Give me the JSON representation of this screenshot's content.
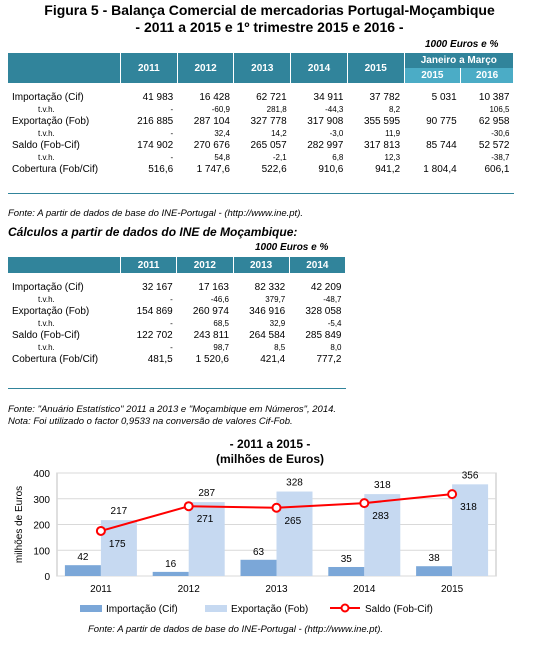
{
  "title_line1": "Figura 5 - Balança Comercial de mercadorias Portugal-Moçambique",
  "title_line2": "- 2011 a 2015 e 1º trimestre 2015 e 2016 -",
  "table1": {
    "units": "1000 Euros e %",
    "years": [
      "2011",
      "2012",
      "2013",
      "2014",
      "2015"
    ],
    "period_header": "Janeiro a Março",
    "period_years": [
      "2015",
      "2016"
    ],
    "rows": [
      {
        "label": "Importação (Cif)",
        "values": [
          "41 983",
          "16 428",
          "62 721",
          "34 911",
          "37 782",
          "5 031",
          "10 387"
        ],
        "sub": false
      },
      {
        "label": "t.v.h.",
        "values": [
          "-",
          "-60,9",
          "281,8",
          "-44,3",
          "8,2",
          "",
          "106,5"
        ],
        "sub": true
      },
      {
        "label": "Exportação (Fob)",
        "values": [
          "216 885",
          "287 104",
          "327 778",
          "317 908",
          "355 595",
          "90 775",
          "62 958"
        ],
        "sub": false
      },
      {
        "label": "t.v.h.",
        "values": [
          "-",
          "32,4",
          "14,2",
          "-3,0",
          "11,9",
          "",
          "-30,6"
        ],
        "sub": true
      },
      {
        "label": "Saldo (Fob-Cif)",
        "values": [
          "174 902",
          "270 676",
          "265 057",
          "282 997",
          "317 813",
          "85 744",
          "52 572"
        ],
        "sub": false
      },
      {
        "label": "t.v.h.",
        "values": [
          "-",
          "54,8",
          "-2,1",
          "6,8",
          "12,3",
          "",
          "-38,7"
        ],
        "sub": true
      },
      {
        "label": "Cobertura (Fob/Cif)",
        "values": [
          "516,6",
          "1 747,6",
          "522,6",
          "910,6",
          "941,2",
          "1 804,4",
          "606,1"
        ],
        "sub": false
      }
    ]
  },
  "source1": "Fonte: A partir de dados de base do INE-Portugal  - (http://www.ine.pt).",
  "subtitle2": "Cálculos a partir de dados do INE de Moçambique:",
  "table2": {
    "units": "1000 Euros e %",
    "years": [
      "2011",
      "2012",
      "2013",
      "2014"
    ],
    "rows": [
      {
        "label": "Importação (Cif)",
        "values": [
          "32 167",
          "17 163",
          "82 332",
          "42 209"
        ],
        "sub": false
      },
      {
        "label": "t.v.h.",
        "values": [
          "-",
          "-46,6",
          "379,7",
          "-48,7"
        ],
        "sub": true
      },
      {
        "label": "Exportação (Fob)",
        "values": [
          "154 869",
          "260 974",
          "346 916",
          "328 058"
        ],
        "sub": false
      },
      {
        "label": "t.v.h.",
        "values": [
          "-",
          "68,5",
          "32,9",
          "-5,4"
        ],
        "sub": true
      },
      {
        "label": "Saldo (Fob-Cif)",
        "values": [
          "122 702",
          "243 811",
          "264 584",
          "285 849"
        ],
        "sub": false
      },
      {
        "label": "t.v.h.",
        "values": [
          "-",
          "98,7",
          "8,5",
          "8,0"
        ],
        "sub": true
      },
      {
        "label": "Cobertura (Fob/Cif)",
        "values": [
          "481,5",
          "1 520,6",
          "421,4",
          "777,2"
        ],
        "sub": false
      }
    ]
  },
  "source2_line1": "Fonte: \"Anuário Estatístico\" 2011 a 2013 e \"Moçambique em Números\", 2014.",
  "source2_line2": "Nota: Foi utilizado o factor 0,9533 na conversão de valores Cif-Fob.",
  "source3": "Fonte: A partir de dados de base do INE-Portugal  - (http://www.ine.pt).",
  "colors": {
    "header": "#31849b",
    "import": "#7ba7d8",
    "export": "#c6d9f1",
    "saldo": "#ff0000"
  },
  "chart_data": {
    "type": "bar",
    "title": "- 2011 a 2015 -",
    "subtitle": "(milhões de Euros)",
    "ylabel": "milhões de Euros",
    "ylim": [
      0,
      400
    ],
    "yticks": [
      "0",
      "100",
      "200",
      "300",
      "400"
    ],
    "categories": [
      "2011",
      "2012",
      "2013",
      "2014",
      "2015"
    ],
    "series": [
      {
        "name": "Importação (Cif)",
        "kind": "bar",
        "values": [
          42,
          16,
          63,
          35,
          38
        ]
      },
      {
        "name": "Exportação (Fob)",
        "kind": "bar",
        "values": [
          217,
          287,
          328,
          318,
          356
        ]
      },
      {
        "name": "Saldo (Fob-Cif)",
        "kind": "line",
        "values": [
          175,
          271,
          265,
          283,
          318
        ]
      }
    ],
    "grid": true,
    "legend": "bottom"
  }
}
